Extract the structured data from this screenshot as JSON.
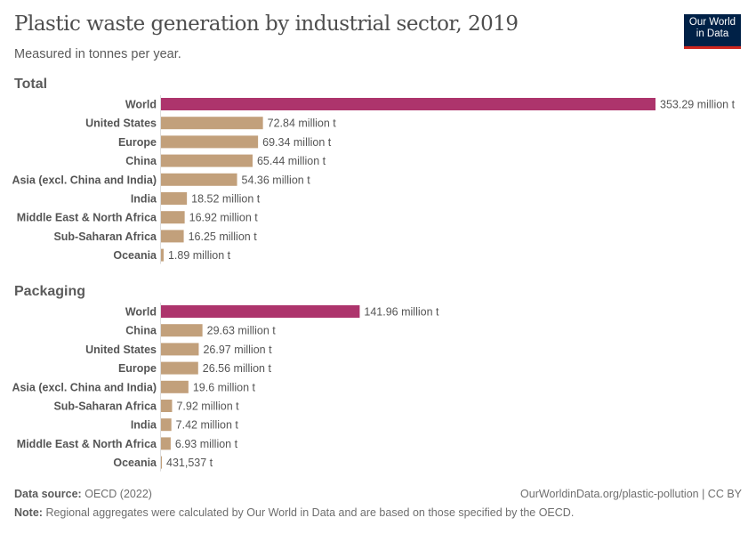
{
  "title": "Plastic waste generation by industrial sector, 2019",
  "subtitle": "Measured in tonnes per year.",
  "logo": {
    "line1": "Our World",
    "line2": "in Data"
  },
  "footer": {
    "source_label": "Data source:",
    "source": "OECD (2022)",
    "url": "OurWorldinData.org/plastic-pollution | CC BY",
    "note_label": "Note:",
    "note": "Regional aggregates were calculated by Our World in Data and are based on those specified by the OECD."
  },
  "colors": {
    "world": "#ad346c",
    "region": "#c2a07b"
  },
  "chart_data": [
    {
      "type": "bar",
      "title": "Total",
      "unit": "tonnes",
      "categories": [
        "World",
        "United States",
        "Europe",
        "China",
        "Asia (excl. China and India)",
        "India",
        "Middle East & North Africa",
        "Sub-Saharan Africa",
        "Oceania"
      ],
      "values": [
        353290000,
        72840000,
        69340000,
        65440000,
        54360000,
        18520000,
        16920000,
        16250000,
        1890000
      ],
      "labels": [
        "353.29 million t",
        "72.84 million t",
        "69.34 million t",
        "65.44 million t",
        "54.36 million t",
        "18.52 million t",
        "16.92 million t",
        "16.25 million t",
        "1.89 million t"
      ]
    },
    {
      "type": "bar",
      "title": "Packaging",
      "unit": "tonnes",
      "categories": [
        "World",
        "China",
        "United States",
        "Europe",
        "Asia (excl. China and India)",
        "Sub-Saharan Africa",
        "India",
        "Middle East & North Africa",
        "Oceania"
      ],
      "values": [
        141960000,
        29630000,
        26970000,
        26560000,
        19600000,
        7920000,
        7420000,
        6930000,
        431537
      ],
      "labels": [
        "141.96 million t",
        "29.63 million t",
        "26.97 million t",
        "26.56 million t",
        "19.6 million t",
        "7.92 million t",
        "7.42 million t",
        "6.93 million t",
        "431,537 t"
      ]
    }
  ]
}
